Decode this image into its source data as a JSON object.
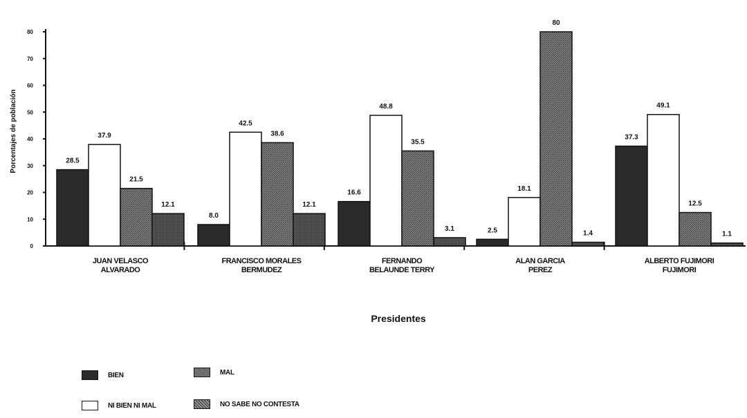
{
  "chart_data": {
    "type": "bar",
    "ylabel": "Porcentajes de población",
    "xlabel": "Presidentes",
    "ylim": [
      0,
      80
    ],
    "yticks": [
      0,
      10,
      20,
      30,
      40,
      50,
      60,
      70,
      80
    ],
    "categories": [
      [
        "JUAN VELASCO",
        "ALVARADO"
      ],
      [
        "FRANCISCO MORALES",
        "BERMUDEZ"
      ],
      [
        "FERNANDO",
        "BELAUNDE TERRY"
      ],
      [
        "ALAN GARCIA",
        "PEREZ"
      ],
      [
        "ALBERTO FUJIMORI",
        "FUJIMORI"
      ]
    ],
    "series": [
      {
        "name": "BIEN",
        "values": [
          28.5,
          8.0,
          16.6,
          2.5,
          37.3
        ],
        "labels": [
          "28.5",
          "8.0",
          "16.6",
          "2.5",
          "37.3"
        ],
        "color": "#2a2a2a"
      },
      {
        "name": "NI BIEN NI MAL",
        "values": [
          37.9,
          42.5,
          48.8,
          18.1,
          49.1
        ],
        "labels": [
          "37.9",
          "42.5",
          "48.8",
          "18.1",
          "49.1"
        ],
        "color": "#ffffff"
      },
      {
        "name": "MAL",
        "values": [
          21.5,
          38.6,
          35.5,
          80.0,
          12.5
        ],
        "labels": [
          "21.5",
          "38.6",
          "35.5",
          "80",
          "12.5"
        ],
        "color": "#666666"
      },
      {
        "name": "NO SABE NO CONTESTA",
        "values": [
          12.1,
          12.1,
          3.1,
          1.4,
          1.1
        ],
        "labels": [
          "12.1",
          "12.1",
          "3.1",
          "1.4",
          "1.1"
        ],
        "color": "#444444"
      }
    ],
    "legend": {
      "bien": "BIEN",
      "ni_bien_ni_mal": "NI BIEN NI MAL",
      "mal": "MAL",
      "no_sabe": "NO SABE NO CONTESTA"
    },
    "legend_position": "bottom-left",
    "grid": false
  }
}
